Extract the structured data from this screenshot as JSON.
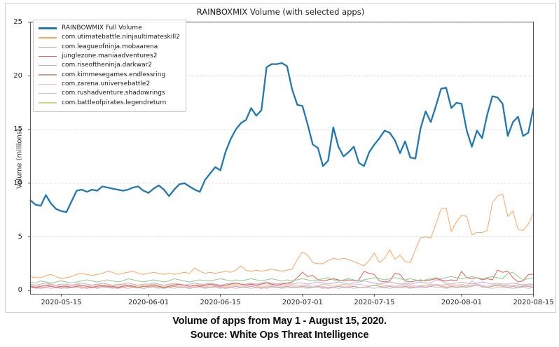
{
  "title": "RAINBOXMIX Volume (with selected apps)",
  "caption": {
    "line1": "Volume of apps from May 1 - August 15, 2020.",
    "line2": "Source: White Ops Threat Intelligence"
  },
  "chart_data": {
    "type": "line",
    "title": "RAINBOXMIX Volume (with selected apps)",
    "xlabel": "",
    "ylabel": "Volume (millions)",
    "ylim": [
      0,
      25
    ],
    "yticks": [
      0,
      5,
      10,
      15,
      20,
      25
    ],
    "grid": "horizontal-dashed",
    "legend_position": "upper-left",
    "x_start_date": "2020-05-09",
    "x_end_date": "2020-08-15",
    "x_frequency": "daily",
    "x_tick_labels": [
      "2020-05-15",
      "2020-06-01",
      "2020-06-15",
      "2020-07-01",
      "2020-07-15",
      "2020-08-01",
      "2020-08-15"
    ],
    "x_tick_indices": [
      6,
      23,
      37,
      53,
      67,
      84,
      98
    ],
    "series": [
      {
        "name": "RAINBOWMIX Full Volume",
        "color": "#1f77b4",
        "line_width": 2.3,
        "values": [
          8.4,
          8.0,
          7.9,
          8.9,
          8.1,
          7.6,
          7.4,
          7.3,
          8.3,
          9.3,
          9.4,
          9.2,
          9.4,
          9.3,
          9.7,
          9.6,
          9.5,
          9.4,
          9.3,
          9.4,
          9.6,
          9.7,
          9.3,
          9.1,
          9.5,
          9.8,
          9.4,
          8.8,
          9.4,
          9.9,
          10.0,
          9.7,
          9.4,
          9.2,
          10.3,
          10.9,
          11.5,
          11.2,
          12.9,
          14.1,
          15.0,
          15.6,
          15.9,
          17.0,
          16.3,
          16.8,
          20.8,
          21.1,
          21.1,
          21.2,
          20.9,
          18.7,
          17.3,
          17.2,
          15.5,
          13.6,
          13.3,
          11.6,
          12.1,
          15.2,
          13.4,
          12.5,
          12.9,
          13.4,
          11.9,
          11.6,
          12.9,
          13.6,
          14.2,
          14.9,
          14.7,
          14.0,
          12.8,
          13.9,
          12.4,
          12.3,
          15.1,
          16.7,
          15.7,
          17.2,
          18.8,
          18.9,
          17.0,
          17.5,
          17.4,
          14.9,
          13.4,
          14.9,
          14.2,
          16.4,
          18.1,
          18.0,
          17.4,
          14.4,
          15.7,
          16.2,
          14.4,
          14.7,
          17.0
        ]
      },
      {
        "name": "com.utimatebattle.ninjaultimateskill2",
        "color": "#ffa35c",
        "line_width": 1,
        "values": [
          1.3,
          1.2,
          1.2,
          1.4,
          1.5,
          1.3,
          1.1,
          1.2,
          1.3,
          1.5,
          1.6,
          1.5,
          1.4,
          1.5,
          1.6,
          1.8,
          1.7,
          1.5,
          1.6,
          1.7,
          1.8,
          1.6,
          1.5,
          1.6,
          1.7,
          1.6,
          1.5,
          1.6,
          1.5,
          1.6,
          1.7,
          1.6,
          2.1,
          1.8,
          1.6,
          1.7,
          1.6,
          1.7,
          1.8,
          1.7,
          1.9,
          2.3,
          1.9,
          1.8,
          1.9,
          1.8,
          1.9,
          2.0,
          1.9,
          1.8,
          1.9,
          2.0,
          2.9,
          3.6,
          3.3,
          2.6,
          2.5,
          2.5,
          2.8,
          3.0,
          2.9,
          3.0,
          2.9,
          2.7,
          2.5,
          2.3,
          2.8,
          3.5,
          2.6,
          3.0,
          3.8,
          2.9,
          3.3,
          2.7,
          2.6,
          3.8,
          4.9,
          5.0,
          4.9,
          6.2,
          7.6,
          7.7,
          5.5,
          6.4,
          7.0,
          6.9,
          5.2,
          5.4,
          5.4,
          5.6,
          8.2,
          8.8,
          9.0,
          6.9,
          7.4,
          5.7,
          5.6,
          6.2,
          7.2
        ]
      },
      {
        "name": "com.leagueofninja.mobaarena",
        "color": "#8cca8c",
        "line_width": 1,
        "values": [
          0.8,
          0.7,
          0.9,
          0.8,
          0.7,
          0.8,
          0.9,
          0.8,
          0.7,
          0.8,
          0.9,
          1.0,
          0.9,
          0.8,
          0.9,
          1.0,
          0.9,
          0.8,
          0.9,
          1.1,
          1.0,
          0.9,
          0.8,
          0.9,
          1.0,
          0.9,
          0.8,
          0.9,
          1.1,
          1.0,
          0.9,
          0.8,
          0.9,
          1.0,
          0.9,
          0.9,
          1.0,
          1.1,
          1.0,
          0.9,
          1.0,
          0.9,
          1.0,
          1.1,
          1.0,
          0.9,
          1.0,
          1.1,
          1.0,
          0.9,
          1.0,
          0.9,
          1.0,
          1.1,
          1.0,
          0.9,
          1.0,
          1.1,
          1.2,
          1.0,
          0.9,
          1.0,
          1.1,
          1.0,
          0.9,
          1.0,
          1.1,
          1.2,
          1.1,
          1.0,
          1.1,
          1.2,
          1.1,
          1.0,
          1.1,
          1.0,
          0.9,
          1.0,
          1.1,
          1.2,
          1.1,
          1.2,
          1.3,
          1.2,
          1.1,
          1.2,
          1.3,
          1.2,
          1.1,
          1.2,
          1.3,
          1.2,
          1.1,
          1.6,
          1.7,
          1.3,
          1.0,
          1.1,
          1.2
        ]
      },
      {
        "name": "junglezone.maniaadventures2",
        "color": "#e05c55",
        "line_width": 1,
        "values": [
          0.4,
          0.3,
          0.4,
          0.5,
          0.4,
          0.3,
          0.4,
          0.4,
          0.3,
          0.4,
          0.5,
          0.4,
          0.3,
          0.4,
          0.5,
          0.4,
          0.4,
          0.3,
          0.4,
          0.5,
          0.4,
          0.3,
          0.4,
          0.4,
          0.5,
          0.4,
          0.3,
          0.4,
          0.5,
          0.6,
          0.5,
          0.4,
          0.5,
          0.4,
          0.5,
          0.6,
          0.5,
          0.4,
          0.5,
          0.6,
          0.7,
          0.6,
          0.5,
          0.6,
          0.5,
          0.6,
          0.7,
          0.6,
          0.5,
          0.6,
          0.7,
          0.8,
          1.2,
          1.7,
          1.3,
          1.4,
          1.0,
          0.9,
          1.0,
          1.1,
          1.0,
          0.9,
          1.0,
          0.9,
          1.0,
          1.8,
          1.6,
          1.5,
          0.9,
          0.8,
          0.9,
          1.6,
          1.5,
          0.9,
          0.8,
          0.9,
          1.0,
          0.9,
          1.0,
          1.1,
          1.0,
          0.9,
          1.0,
          0.9,
          1.8,
          1.2,
          1.1,
          1.2,
          1.0,
          1.1,
          1.0,
          1.9,
          1.7,
          1.8,
          1.2,
          0.8,
          0.9,
          1.5,
          1.5
        ]
      },
      {
        "name": "com.riseoftheninja.darkwar2",
        "color": "#c3aad8",
        "line_width": 1,
        "values": [
          0.6,
          0.5,
          0.6,
          0.7,
          0.6,
          0.5,
          0.6,
          0.6,
          0.5,
          0.6,
          0.7,
          0.6,
          0.5,
          0.6,
          0.7,
          0.6,
          0.5,
          0.6,
          0.6,
          0.7,
          0.6,
          0.5,
          0.6,
          0.6,
          0.7,
          0.6,
          0.5,
          0.6,
          0.7,
          0.6,
          0.5,
          0.6,
          0.7,
          0.6,
          0.6,
          0.7,
          0.6,
          0.5,
          0.6,
          0.7,
          0.7,
          0.6,
          0.6,
          0.7,
          0.6,
          0.7,
          0.8,
          0.7,
          0.6,
          0.7,
          0.7,
          0.6,
          0.7,
          0.7,
          0.6,
          0.7,
          0.8,
          0.7,
          0.6,
          0.7,
          0.8,
          0.7,
          0.6,
          0.7,
          0.8,
          0.9,
          0.8,
          0.7,
          0.6,
          0.7,
          0.8,
          0.7,
          0.6,
          0.7,
          0.6,
          0.7,
          0.8,
          0.7,
          0.7,
          1.0,
          0.9,
          0.7,
          0.6,
          0.7,
          0.8,
          0.7,
          0.6,
          0.7,
          0.8,
          0.7,
          0.6,
          0.7,
          0.6,
          0.6,
          0.7,
          0.6,
          0.5,
          0.6,
          0.6
        ]
      },
      {
        "name": "com.kimmesegames.endlessring",
        "color": "#c8a39a",
        "line_width": 1,
        "values": [
          0.3,
          0.3,
          0.2,
          0.3,
          0.4,
          0.3,
          0.2,
          0.3,
          0.3,
          0.4,
          0.3,
          0.2,
          0.3,
          0.3,
          0.4,
          0.3,
          0.3,
          0.2,
          0.3,
          0.4,
          0.3,
          0.3,
          0.2,
          0.3,
          0.4,
          0.3,
          0.2,
          0.3,
          0.4,
          0.3,
          0.3,
          0.2,
          0.3,
          0.4,
          0.3,
          0.3,
          0.4,
          0.3,
          0.2,
          0.3,
          0.4,
          0.3,
          0.3,
          0.4,
          0.3,
          0.2,
          0.3,
          0.4,
          0.3,
          0.3,
          0.4,
          0.3,
          0.3,
          0.4,
          0.3,
          0.3,
          0.4,
          0.3,
          0.2,
          0.3,
          0.4,
          0.3,
          0.3,
          0.4,
          0.3,
          0.3,
          0.4,
          0.5,
          0.4,
          0.3,
          0.4,
          0.3,
          0.3,
          0.4,
          0.3,
          0.3,
          0.4,
          0.3,
          0.4,
          0.5,
          0.4,
          0.3,
          0.4,
          0.3,
          0.4,
          0.3,
          0.4,
          0.5,
          0.4,
          0.3,
          0.4,
          0.5,
          0.4,
          0.3,
          0.4,
          0.3,
          0.4,
          0.4,
          0.3
        ]
      },
      {
        "name": "com.zarena.universebattle2",
        "color": "#f2b8dd",
        "line_width": 1,
        "values": [
          0.4,
          0.4,
          0.3,
          0.4,
          0.5,
          0.4,
          0.3,
          0.4,
          0.4,
          0.5,
          0.4,
          0.3,
          0.4,
          0.5,
          0.4,
          0.4,
          0.3,
          0.4,
          0.5,
          0.4,
          0.4,
          0.3,
          0.4,
          0.4,
          0.5,
          0.4,
          0.3,
          0.4,
          0.5,
          0.4,
          0.4,
          0.3,
          0.4,
          0.5,
          0.4,
          0.4,
          0.5,
          0.4,
          0.3,
          0.4,
          0.5,
          0.4,
          0.4,
          0.5,
          0.4,
          0.3,
          0.4,
          0.5,
          0.4,
          0.4,
          0.5,
          0.4,
          0.4,
          0.5,
          0.4,
          0.4,
          0.5,
          0.4,
          0.3,
          0.4,
          0.5,
          0.4,
          0.4,
          0.5,
          0.6,
          0.5,
          0.4,
          0.5,
          0.4,
          0.4,
          0.5,
          0.4,
          0.4,
          0.5,
          0.4,
          0.4,
          0.5,
          0.4,
          0.5,
          0.6,
          0.5,
          0.4,
          0.5,
          0.4,
          0.5,
          0.4,
          0.5,
          0.6,
          0.5,
          0.4,
          0.5,
          0.4,
          0.5,
          0.4,
          0.5,
          0.4,
          0.4,
          0.5,
          0.4
        ]
      },
      {
        "name": "com.rushadventure.shadowrings",
        "color": "#c4c4c4",
        "line_width": 1,
        "values": [
          0.3,
          0.2,
          0.3,
          0.3,
          0.2,
          0.3,
          0.3,
          0.2,
          0.3,
          0.3,
          0.2,
          0.3,
          0.3,
          0.2,
          0.3,
          0.3,
          0.2,
          0.3,
          0.3,
          0.2,
          0.3,
          0.3,
          0.2,
          0.3,
          0.3,
          0.2,
          0.3,
          0.3,
          0.2,
          0.3,
          0.3,
          0.2,
          0.3,
          0.3,
          0.2,
          0.3,
          0.3,
          0.2,
          0.3,
          0.3,
          0.2,
          0.3,
          0.3,
          0.2,
          0.3,
          0.3,
          0.2,
          0.3,
          0.3,
          0.2,
          0.3,
          0.3,
          0.3,
          0.3,
          0.2,
          0.3,
          0.3,
          0.2,
          0.3,
          0.3,
          0.2,
          0.3,
          0.3,
          0.2,
          0.3,
          0.3,
          0.3,
          0.2,
          0.3,
          0.3,
          0.2,
          0.3,
          0.3,
          0.3,
          0.2,
          0.3,
          0.3,
          0.3,
          0.4,
          0.3,
          0.3,
          0.2,
          0.3,
          0.3,
          0.3,
          0.4,
          0.9,
          0.6,
          0.3,
          0.3,
          0.2,
          0.3,
          0.3,
          0.3,
          0.2,
          0.3,
          0.3,
          0.2,
          0.3
        ]
      },
      {
        "name": "com.battleofpirates.legendreturn",
        "color": "#d6d687",
        "line_width": 1,
        "values": [
          0.5,
          0.5,
          0.4,
          0.5,
          0.6,
          0.5,
          0.4,
          0.5,
          0.5,
          0.6,
          0.5,
          0.4,
          0.5,
          0.6,
          0.5,
          0.5,
          0.4,
          0.5,
          0.6,
          0.5,
          0.5,
          0.4,
          0.5,
          0.5,
          0.6,
          0.5,
          0.4,
          0.5,
          0.6,
          0.5,
          0.5,
          0.4,
          0.5,
          0.6,
          0.5,
          0.5,
          0.6,
          0.5,
          0.4,
          0.5,
          0.6,
          0.5,
          0.5,
          0.6,
          0.5,
          0.4,
          0.5,
          0.6,
          0.5,
          0.5,
          0.6,
          0.5,
          0.5,
          0.5,
          0.5,
          0.4,
          0.5,
          0.6,
          0.5,
          0.4,
          0.5,
          0.6,
          0.5,
          0.5,
          0.6,
          0.5,
          0.4,
          0.5,
          0.6,
          0.5,
          0.5,
          0.4,
          0.5,
          0.6,
          0.5,
          0.4,
          0.5,
          0.5,
          0.6,
          0.5,
          0.5,
          0.6,
          0.5,
          0.5,
          0.6,
          0.5,
          0.5,
          0.6,
          0.5,
          0.4,
          0.5,
          0.6,
          0.5,
          0.5,
          0.4,
          0.5,
          0.6,
          0.5,
          0.5
        ]
      }
    ]
  }
}
